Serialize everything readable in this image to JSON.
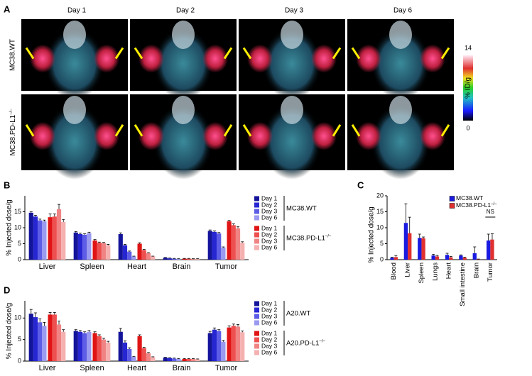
{
  "panel_a": {
    "panel_label": "A",
    "days": [
      "Day 1",
      "Day 2",
      "Day 3",
      "Day 6"
    ],
    "rows": [
      "MC38.WT",
      {
        "name": "MC38.PD-L1",
        "superscript": "–/–"
      }
    ],
    "colorbar": {
      "max_label": "14",
      "min_label": "0",
      "unit": "% ID/g"
    }
  },
  "chart_data": [
    {
      "type": "bar",
      "panel_label": "B",
      "y_label": "% Injected dose/g",
      "categories": [
        "Liver",
        "Spleen",
        "Heart",
        "Brain",
        "Tumor"
      ],
      "ylim": [
        0,
        20
      ],
      "yticks": [
        0,
        5,
        10,
        15
      ],
      "series_groups": [
        {
          "name": "MC38.WT",
          "series": [
            {
              "name": "Day 1",
              "color": "#14149a",
              "values": [
                14.7,
                8.5,
                8.0,
                0.6,
                9.0
              ],
              "errors": [
                0.3,
                0.3,
                0.4,
                0.1,
                0.3
              ]
            },
            {
              "name": "Day 2",
              "color": "#2626d2",
              "values": [
                13.5,
                8.0,
                4.5,
                0.4,
                8.7
              ],
              "errors": [
                0.4,
                0.3,
                0.3,
                0.1,
                0.3
              ]
            },
            {
              "name": "Day 3",
              "color": "#5c5ce6",
              "values": [
                12.3,
                7.8,
                2.5,
                0.3,
                8.2
              ],
              "errors": [
                0.4,
                0.3,
                0.2,
                0.1,
                0.3
              ]
            },
            {
              "name": "Day 6",
              "color": "#9a9af0",
              "values": [
                12.0,
                8.3,
                1.0,
                0.2,
                3.8
              ],
              "errors": [
                0.4,
                0.3,
                0.1,
                0.1,
                0.2
              ]
            }
          ]
        },
        {
          "name": "MC38.PD-L1",
          "superscript": "–/–",
          "series": [
            {
              "name": "Day 1",
              "color": "#e01414",
              "values": [
                13.3,
                6.0,
                5.0,
                0.3,
                12.0
              ],
              "errors": [
                1.0,
                0.3,
                0.3,
                0.1,
                0.3
              ]
            },
            {
              "name": "Day 2",
              "color": "#ee5050",
              "values": [
                13.5,
                5.3,
                3.0,
                0.3,
                10.8
              ],
              "errors": [
                0.8,
                0.2,
                0.2,
                0.1,
                0.4
              ]
            },
            {
              "name": "Day 3",
              "color": "#f08484",
              "values": [
                15.8,
                5.2,
                2.0,
                0.2,
                9.8
              ],
              "errors": [
                1.5,
                0.2,
                0.2,
                0.1,
                0.5
              ]
            },
            {
              "name": "Day 6",
              "color": "#f5b0b0",
              "values": [
                11.8,
                4.5,
                1.0,
                0.2,
                5.3
              ],
              "errors": [
                0.8,
                0.3,
                0.1,
                0.1,
                0.3
              ]
            }
          ]
        }
      ]
    },
    {
      "type": "bar",
      "panel_label": "C",
      "y_label": "% Injected dose/g",
      "categories": [
        "Blood",
        "Liver",
        "Spleen",
        "Lungs",
        "Heart",
        "Small intestine",
        "Brain",
        "Tumor"
      ],
      "ylim": [
        0,
        20
      ],
      "yticks": [
        0,
        5,
        10,
        15,
        20
      ],
      "annotation": "NS",
      "series": [
        {
          "name": "MC38.WT",
          "color": "#1a1ae0",
          "values": [
            0.6,
            11.5,
            6.8,
            1.3,
            1.5,
            1.3,
            2.0,
            6.0
          ],
          "errors": [
            0.2,
            6.0,
            1.2,
            0.4,
            0.5,
            0.2,
            2.0,
            2.0
          ]
        },
        {
          "name": "MC38.PD-L1",
          "superscript": "–/–",
          "color": "#e03030",
          "values": [
            0.8,
            8.3,
            6.7,
            1.0,
            0.7,
            0.6,
            0.1,
            6.3
          ],
          "errors": [
            0.5,
            5.0,
            0.4,
            0.3,
            0.3,
            0.2,
            0.1,
            1.8
          ]
        }
      ]
    },
    {
      "type": "bar",
      "panel_label": "D",
      "y_label": "% Injected dose/g",
      "categories": [
        "Liver",
        "Spleen",
        "Heart",
        "Brain",
        "Tumor"
      ],
      "ylim": [
        0,
        14
      ],
      "yticks": [
        0,
        5,
        10
      ],
      "series_groups": [
        {
          "name": "A20.WT",
          "series": [
            {
              "name": "Day 1",
              "color": "#14149a",
              "values": [
                11.0,
                7.0,
                6.8,
                0.8,
                6.5
              ],
              "errors": [
                1.0,
                0.3,
                0.8,
                0.1,
                0.4
              ]
            },
            {
              "name": "Day 2",
              "color": "#2626d2",
              "values": [
                10.2,
                6.8,
                4.3,
                0.7,
                7.3
              ],
              "errors": [
                1.0,
                0.3,
                0.4,
                0.1,
                0.4
              ]
            },
            {
              "name": "Day 3",
              "color": "#5c5ce6",
              "values": [
                9.0,
                6.5,
                2.8,
                0.6,
                7.0
              ],
              "errors": [
                0.8,
                0.3,
                0.3,
                0.1,
                0.3
              ]
            },
            {
              "name": "Day 6",
              "color": "#9a9af0",
              "values": [
                8.2,
                6.8,
                1.0,
                0.5,
                4.5
              ],
              "errors": [
                0.8,
                0.3,
                0.1,
                0.1,
                0.3
              ]
            }
          ]
        },
        {
          "name": "A20.PD-L1",
          "superscript": "–/–",
          "series": [
            {
              "name": "Day 1",
              "color": "#e01414",
              "values": [
                10.8,
                6.5,
                5.8,
                0.5,
                7.8
              ],
              "errors": [
                0.5,
                0.3,
                0.3,
                0.1,
                0.4
              ]
            },
            {
              "name": "Day 2",
              "color": "#ee5050",
              "values": [
                10.8,
                5.8,
                3.0,
                0.5,
                8.2
              ],
              "errors": [
                0.5,
                0.3,
                0.2,
                0.1,
                0.4
              ]
            },
            {
              "name": "Day 3",
              "color": "#f08484",
              "values": [
                8.5,
                5.0,
                1.8,
                0.5,
                8.0
              ],
              "errors": [
                0.8,
                0.3,
                0.2,
                0.1,
                0.5
              ]
            },
            {
              "name": "Day 6",
              "color": "#f5b0b0",
              "values": [
                6.8,
                4.3,
                0.9,
                0.4,
                6.7
              ],
              "errors": [
                0.5,
                0.3,
                0.1,
                0.1,
                0.3
              ]
            }
          ]
        }
      ]
    }
  ]
}
